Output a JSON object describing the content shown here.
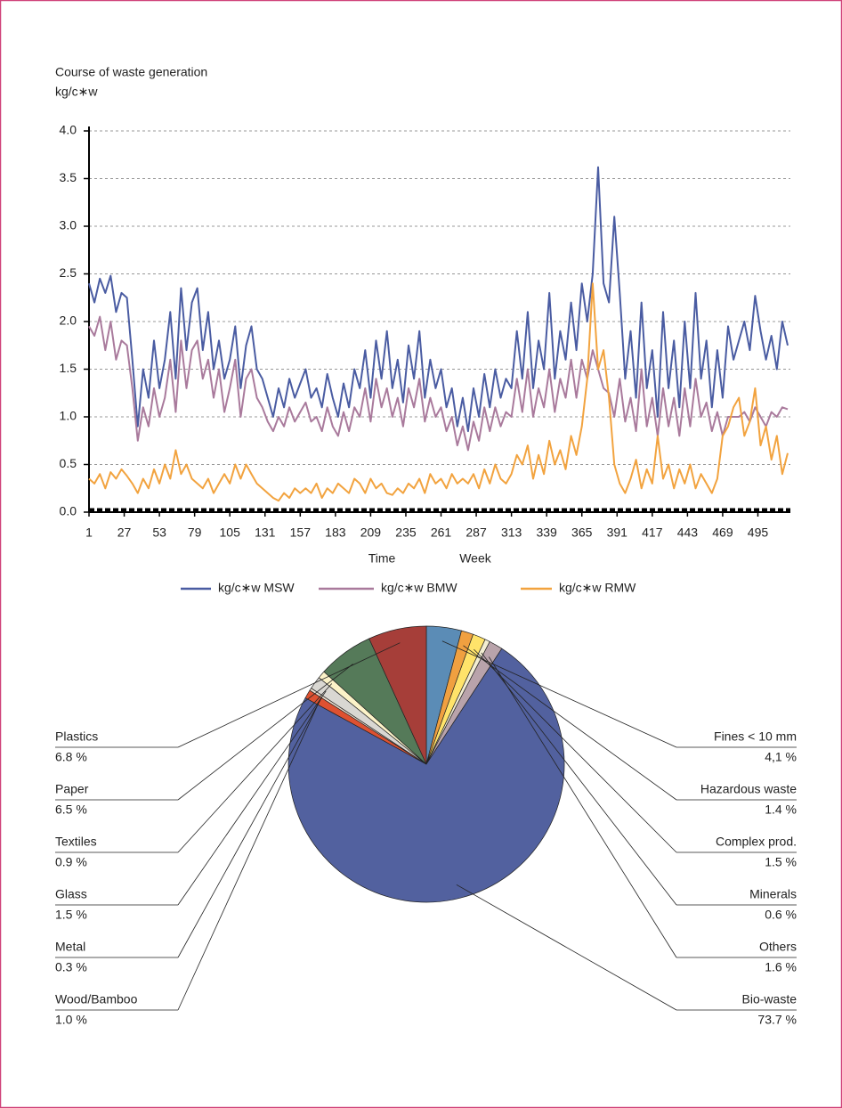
{
  "chart_data": [
    {
      "type": "line",
      "title": "Course of waste generation",
      "ylabel": "kg/c∗w",
      "xlabel": "Time",
      "xunit": "Week",
      "x": [
        1,
        5,
        9,
        13,
        17,
        21,
        25,
        29,
        33,
        37,
        41,
        45,
        49,
        53,
        57,
        61,
        65,
        69,
        73,
        77,
        81,
        85,
        89,
        93,
        97,
        101,
        105,
        109,
        113,
        117,
        121,
        125,
        129,
        133,
        137,
        141,
        145,
        149,
        153,
        157,
        161,
        165,
        169,
        173,
        177,
        181,
        185,
        189,
        193,
        197,
        201,
        205,
        209,
        213,
        217,
        221,
        225,
        229,
        233,
        237,
        241,
        245,
        249,
        253,
        257,
        261,
        265,
        269,
        273,
        277,
        281,
        285,
        289,
        293,
        297,
        301,
        305,
        309,
        313,
        317,
        321,
        325,
        329,
        333,
        337,
        341,
        345,
        349,
        353,
        357,
        361,
        365,
        369,
        373,
        377,
        381,
        385,
        389,
        393,
        397,
        401,
        405,
        409,
        413,
        417,
        421,
        425,
        429,
        433,
        437,
        441,
        445,
        449,
        453,
        457,
        461,
        465,
        469,
        473,
        477,
        481,
        485,
        489,
        493,
        497,
        501,
        505,
        509,
        513,
        517
      ],
      "series": [
        {
          "name": "kg/c∗w MSW",
          "color": "#4a5ca2",
          "values": [
            2.4,
            2.2,
            2.45,
            2.3,
            2.48,
            2.1,
            2.3,
            2.25,
            1.6,
            0.9,
            1.5,
            1.2,
            1.8,
            1.3,
            1.6,
            2.1,
            1.4,
            2.35,
            1.7,
            2.2,
            2.35,
            1.7,
            2.1,
            1.5,
            1.8,
            1.4,
            1.6,
            1.95,
            1.3,
            1.75,
            1.95,
            1.5,
            1.4,
            1.2,
            1.0,
            1.3,
            1.1,
            1.4,
            1.2,
            1.35,
            1.5,
            1.2,
            1.3,
            1.1,
            1.45,
            1.2,
            1.0,
            1.35,
            1.1,
            1.5,
            1.3,
            1.7,
            1.2,
            1.8,
            1.4,
            1.9,
            1.3,
            1.6,
            1.15,
            1.75,
            1.4,
            1.9,
            1.2,
            1.6,
            1.3,
            1.5,
            1.1,
            1.3,
            0.9,
            1.2,
            0.85,
            1.3,
            1.0,
            1.45,
            1.1,
            1.5,
            1.2,
            1.4,
            1.3,
            1.9,
            1.4,
            2.1,
            1.3,
            1.8,
            1.5,
            2.3,
            1.4,
            1.9,
            1.6,
            2.2,
            1.7,
            2.4,
            2.0,
            2.5,
            3.62,
            2.4,
            2.2,
            3.1,
            2.3,
            1.4,
            1.9,
            1.2,
            2.2,
            1.3,
            1.7,
            1.0,
            2.1,
            1.3,
            1.8,
            1.1,
            2.0,
            1.3,
            2.3,
            1.4,
            1.8,
            1.1,
            1.7,
            1.2,
            1.95,
            1.6,
            1.8,
            2.0,
            1.7,
            2.27,
            1.9,
            1.6,
            1.85,
            1.5,
            2.0,
            1.75
          ]
        },
        {
          "name": "kg/c∗w BMW",
          "color": "#a97a9c",
          "values": [
            1.95,
            1.85,
            2.05,
            1.7,
            2.0,
            1.6,
            1.8,
            1.75,
            1.3,
            0.75,
            1.1,
            0.9,
            1.3,
            1.0,
            1.2,
            1.6,
            1.05,
            1.8,
            1.3,
            1.7,
            1.8,
            1.4,
            1.6,
            1.2,
            1.5,
            1.05,
            1.3,
            1.6,
            1.0,
            1.4,
            1.5,
            1.2,
            1.1,
            0.95,
            0.85,
            1.0,
            0.9,
            1.1,
            0.95,
            1.05,
            1.15,
            0.95,
            1.0,
            0.85,
            1.1,
            0.9,
            0.8,
            1.05,
            0.85,
            1.1,
            1.0,
            1.3,
            0.95,
            1.4,
            1.1,
            1.3,
            1.0,
            1.2,
            0.9,
            1.3,
            1.1,
            1.4,
            0.95,
            1.2,
            1.0,
            1.1,
            0.85,
            1.0,
            0.7,
            0.9,
            0.65,
            0.95,
            0.75,
            1.1,
            0.85,
            1.1,
            0.9,
            1.05,
            1.0,
            1.4,
            1.05,
            1.5,
            1.0,
            1.3,
            1.1,
            1.5,
            1.05,
            1.4,
            1.2,
            1.6,
            1.2,
            1.6,
            1.4,
            1.7,
            1.5,
            1.3,
            1.25,
            1.0,
            1.4,
            0.95,
            1.2,
            0.85,
            1.5,
            0.9,
            1.2,
            0.8,
            1.3,
            0.9,
            1.2,
            0.8,
            1.3,
            0.9,
            1.4,
            1.0,
            1.15,
            0.85,
            1.05,
            0.8,
            1.0,
            1.0,
            1.0,
            1.05,
            0.95,
            1.1,
            1.0,
            0.9,
            1.05,
            1.0,
            1.1,
            1.08
          ]
        },
        {
          "name": "kg/c∗w RMW",
          "color": "#f2a33f",
          "values": [
            0.35,
            0.3,
            0.4,
            0.25,
            0.42,
            0.35,
            0.45,
            0.38,
            0.3,
            0.2,
            0.35,
            0.25,
            0.45,
            0.3,
            0.5,
            0.35,
            0.65,
            0.4,
            0.5,
            0.35,
            0.3,
            0.25,
            0.35,
            0.2,
            0.3,
            0.4,
            0.3,
            0.5,
            0.35,
            0.5,
            0.4,
            0.3,
            0.25,
            0.2,
            0.15,
            0.12,
            0.2,
            0.15,
            0.25,
            0.2,
            0.25,
            0.2,
            0.3,
            0.15,
            0.25,
            0.2,
            0.3,
            0.25,
            0.2,
            0.35,
            0.3,
            0.2,
            0.35,
            0.25,
            0.3,
            0.2,
            0.18,
            0.25,
            0.2,
            0.3,
            0.25,
            0.35,
            0.2,
            0.4,
            0.3,
            0.35,
            0.25,
            0.4,
            0.3,
            0.35,
            0.3,
            0.4,
            0.25,
            0.45,
            0.3,
            0.5,
            0.35,
            0.3,
            0.4,
            0.6,
            0.5,
            0.7,
            0.35,
            0.6,
            0.4,
            0.75,
            0.5,
            0.65,
            0.45,
            0.8,
            0.6,
            0.9,
            1.4,
            2.4,
            1.5,
            1.7,
            1.2,
            0.5,
            0.3,
            0.2,
            0.35,
            0.55,
            0.25,
            0.45,
            0.3,
            0.8,
            0.35,
            0.5,
            0.25,
            0.45,
            0.3,
            0.5,
            0.25,
            0.4,
            0.3,
            0.2,
            0.35,
            0.8,
            0.9,
            1.1,
            1.2,
            0.8,
            0.95,
            1.3,
            0.7,
            0.9,
            0.55,
            0.8,
            0.4,
            0.62
          ]
        }
      ],
      "xlim": [
        1,
        519
      ],
      "xticks": [
        1,
        27,
        53,
        79,
        105,
        131,
        157,
        183,
        209,
        235,
        261,
        287,
        313,
        339,
        365,
        391,
        417,
        443,
        469,
        495
      ],
      "ylim": [
        0,
        4
      ],
      "yticks": [
        {
          "value": 0,
          "label": "0.0"
        },
        0.5,
        {
          "value": 1,
          "label": "1.0"
        },
        1.5,
        {
          "value": 2,
          "label": "2.0"
        },
        2.5,
        {
          "value": 3,
          "label": "3.0"
        },
        3.5,
        {
          "value": 4,
          "label": "4.0"
        }
      ],
      "grid": true
    },
    {
      "type": "pie",
      "categories": [
        "Fines < 10 mm",
        "Hazardous waste",
        "Complex prod.",
        "Minerals",
        "Others",
        "Bio-waste",
        "Wood/Bamboo",
        "Metal",
        "Glass",
        "Textiles",
        "Paper",
        "Plastics"
      ],
      "values": [
        4.1,
        1.4,
        1.5,
        0.6,
        1.6,
        73.7,
        1.0,
        0.3,
        1.5,
        0.9,
        6.5,
        6.8
      ],
      "value_labels": [
        "4,1 %",
        "1.4 %",
        "1.5 %",
        "0.6 %",
        "1.6 %",
        "73.7 %",
        "1.0 %",
        "0.3 %",
        "1.5 %",
        "0.9 %",
        "6.5 %",
        "6.8 %"
      ],
      "colors": [
        "#5b8cb6",
        "#f0a040",
        "#ffe36a",
        "#f3eed2",
        "#b9a3ab",
        "#52619f",
        "#de5131",
        "#eadccc",
        "#d9d7d2",
        "#fcf3c8",
        "#557a59",
        "#a63e39"
      ]
    }
  ]
}
